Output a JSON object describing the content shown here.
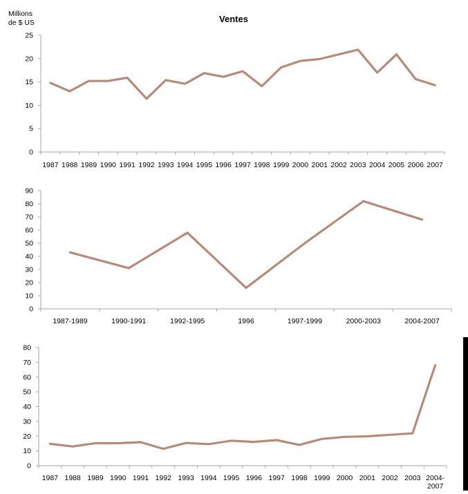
{
  "colors": {
    "line": "#B58A78",
    "axis": "#A6A6A6",
    "edge_bar": "#000000"
  },
  "unit_label": "Millions\nde $ US",
  "chart_data": [
    {
      "type": "line",
      "title": "Ventes",
      "ylabel": "Millions de $ US",
      "xlabel": "",
      "ylim": [
        0,
        25
      ],
      "yticks": [
        0,
        5,
        10,
        15,
        20,
        25
      ],
      "categories": [
        "1987",
        "1988",
        "1989",
        "1990",
        "1991",
        "1992",
        "1993",
        "1994",
        "1995",
        "1996",
        "1997",
        "1998",
        "1999",
        "2000",
        "2001",
        "2002",
        "2003",
        "2004",
        "2005",
        "2006",
        "2007"
      ],
      "series": [
        {
          "values": [
            14.8,
            13.0,
            15.2,
            15.2,
            15.9,
            11.4,
            15.4,
            14.6,
            16.9,
            16.1,
            17.3,
            14.1,
            18.1,
            19.5,
            19.9,
            20.9,
            21.9,
            17.0,
            20.9,
            15.6,
            14.3
          ]
        }
      ],
      "grid": false
    },
    {
      "type": "line",
      "title": "",
      "xlabel": "",
      "ylabel": "",
      "ylim": [
        0,
        90
      ],
      "yticks": [
        0,
        10,
        20,
        30,
        40,
        50,
        60,
        70,
        80,
        90
      ],
      "categories": [
        "1987-1989",
        "1990-1991",
        "1992-1995",
        "1996",
        "1997-1999",
        "2000-2003",
        "2004-2007"
      ],
      "series": [
        {
          "values": [
            43,
            31,
            58,
            16,
            50,
            82,
            68
          ]
        }
      ],
      "grid": false
    },
    {
      "type": "line",
      "title": "",
      "xlabel": "",
      "ylabel": "",
      "ylim": [
        0,
        80
      ],
      "yticks": [
        0,
        10,
        20,
        30,
        40,
        50,
        60,
        70,
        80
      ],
      "categories": [
        "1987",
        "1988",
        "1989",
        "1990",
        "1991",
        "1992",
        "1993",
        "1994",
        "1995",
        "1996",
        "1997",
        "1998",
        "1999",
        "2000",
        "2001",
        "2002",
        "2003",
        "2004-\n2007"
      ],
      "series": [
        {
          "values": [
            14.8,
            13.0,
            15.2,
            15.2,
            15.9,
            11.4,
            15.4,
            14.6,
            16.9,
            16.1,
            17.3,
            14.1,
            18.1,
            19.5,
            19.9,
            20.9,
            21.9,
            68
          ]
        }
      ],
      "grid": false
    }
  ]
}
